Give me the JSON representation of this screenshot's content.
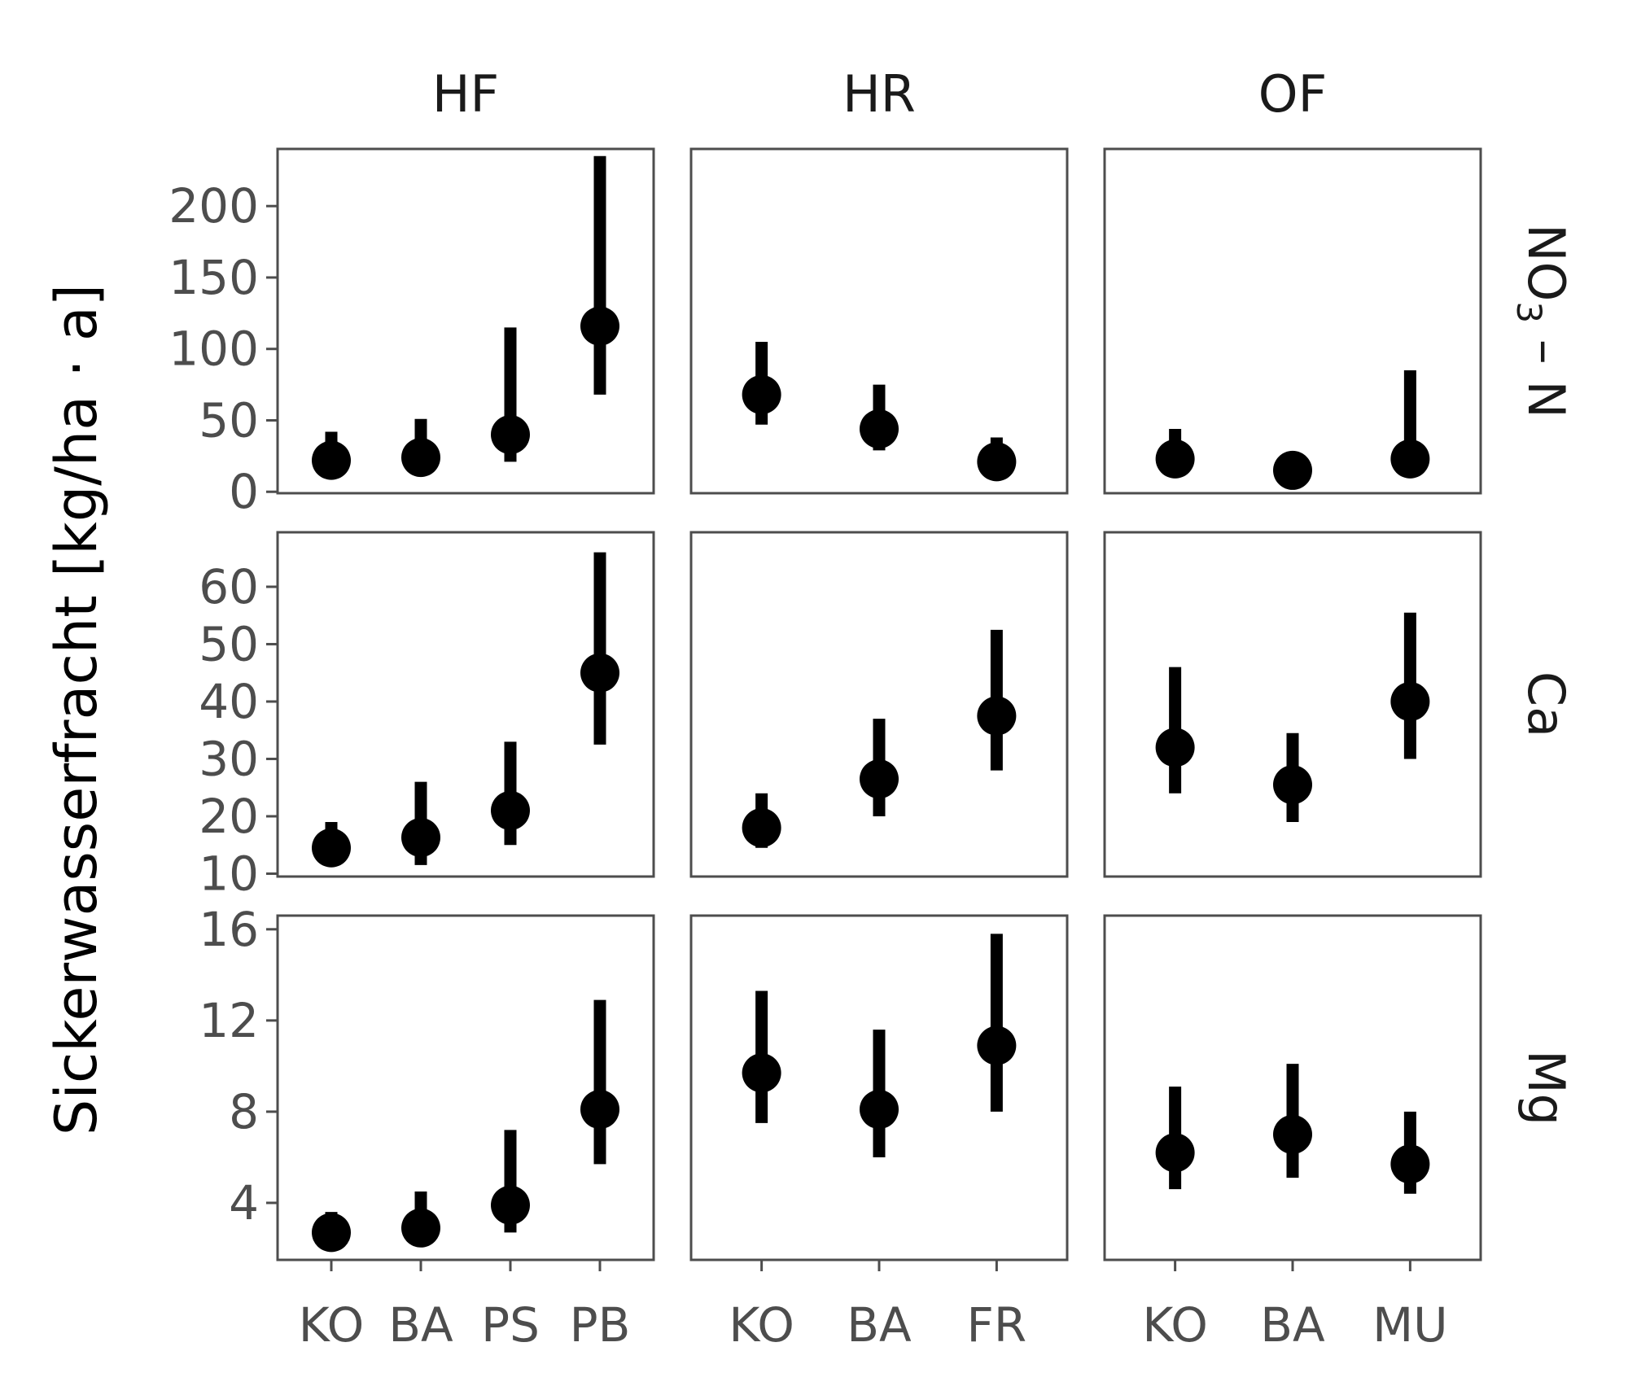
{
  "chart_data": {
    "type": "scatter",
    "title": "",
    "ylabel": "Sickerwasserfracht [kg/ha · a]",
    "xlabel": "",
    "grid": false,
    "legend": "none",
    "colors": {
      "mark": "#000000",
      "frame": "#4d4d4d",
      "tick_text": "#4d4d4d"
    },
    "columns": [
      {
        "id": "HF",
        "label": "HF",
        "categories": [
          "KO",
          "BA",
          "PS",
          "PB"
        ]
      },
      {
        "id": "HR",
        "label": "HR",
        "categories": [
          "KO",
          "BA",
          "FR"
        ]
      },
      {
        "id": "OF",
        "label": "OF",
        "categories": [
          "KO",
          "BA",
          "MU"
        ]
      }
    ],
    "rows": [
      {
        "id": "NO3N",
        "label_main": "NO",
        "label_sub": "3",
        "label_rest": " – N",
        "ylim": [
          -1,
          240
        ],
        "yticks": [
          0,
          50,
          100,
          150,
          200
        ],
        "ytick_labels": [
          "0",
          "50",
          "100",
          "150",
          "200"
        ],
        "panels": {
          "HF": [
            {
              "y": 22,
              "lo": 18,
              "hi": 42
            },
            {
              "y": 24,
              "lo": 20,
              "hi": 51
            },
            {
              "y": 40,
              "lo": 21,
              "hi": 115
            },
            {
              "y": 116,
              "lo": 68,
              "hi": 235
            }
          ],
          "HR": [
            {
              "y": 68,
              "lo": 47,
              "hi": 105
            },
            {
              "y": 44,
              "lo": 29,
              "hi": 75
            },
            {
              "y": 21,
              "lo": 16,
              "hi": 38
            }
          ],
          "OF": [
            {
              "y": 23,
              "lo": 19,
              "hi": 44
            },
            {
              "y": 15,
              "lo": 13,
              "hi": 18
            },
            {
              "y": 23,
              "lo": 19,
              "hi": 85
            }
          ]
        }
      },
      {
        "id": "Ca",
        "label_main": "Ca",
        "label_sub": "",
        "label_rest": "",
        "ylim": [
          9.5,
          69.5
        ],
        "yticks": [
          10,
          20,
          30,
          40,
          50,
          60
        ],
        "ytick_labels": [
          "10",
          "20",
          "30",
          "40",
          "50",
          "60"
        ],
        "panels": {
          "HF": [
            {
              "y": 14.5,
              "lo": 11.5,
              "hi": 19
            },
            {
              "y": 16.3,
              "lo": 11.5,
              "hi": 26
            },
            {
              "y": 21,
              "lo": 15,
              "hi": 33
            },
            {
              "y": 45,
              "lo": 32.5,
              "hi": 66
            }
          ],
          "HR": [
            {
              "y": 18,
              "lo": 14.5,
              "hi": 24
            },
            {
              "y": 26.5,
              "lo": 20,
              "hi": 37
            },
            {
              "y": 37.5,
              "lo": 28,
              "hi": 52.5
            }
          ],
          "OF": [
            {
              "y": 32,
              "lo": 24,
              "hi": 46
            },
            {
              "y": 25.5,
              "lo": 19,
              "hi": 34.5
            },
            {
              "y": 40,
              "lo": 30,
              "hi": 55.5
            }
          ]
        }
      },
      {
        "id": "Mg",
        "label_main": "Mg",
        "label_sub": "",
        "label_rest": "",
        "ylim": [
          1.5,
          16.6
        ],
        "yticks": [
          4,
          8,
          12,
          16
        ],
        "ytick_labels": [
          "4",
          "8",
          "12",
          "16"
        ],
        "panels": {
          "HF": [
            {
              "y": 2.7,
              "lo": 2.3,
              "hi": 3.6
            },
            {
              "y": 2.9,
              "lo": 2.1,
              "hi": 4.5
            },
            {
              "y": 3.9,
              "lo": 2.7,
              "hi": 7.2
            },
            {
              "y": 8.1,
              "lo": 5.7,
              "hi": 12.9
            }
          ],
          "HR": [
            {
              "y": 9.7,
              "lo": 7.5,
              "hi": 13.3
            },
            {
              "y": 8.1,
              "lo": 6.0,
              "hi": 11.6
            },
            {
              "y": 10.9,
              "lo": 8.0,
              "hi": 15.8
            }
          ],
          "OF": [
            {
              "y": 6.2,
              "lo": 4.6,
              "hi": 9.1
            },
            {
              "y": 7.0,
              "lo": 5.1,
              "hi": 10.1
            },
            {
              "y": 5.7,
              "lo": 4.4,
              "hi": 8.0
            }
          ]
        }
      }
    ]
  }
}
